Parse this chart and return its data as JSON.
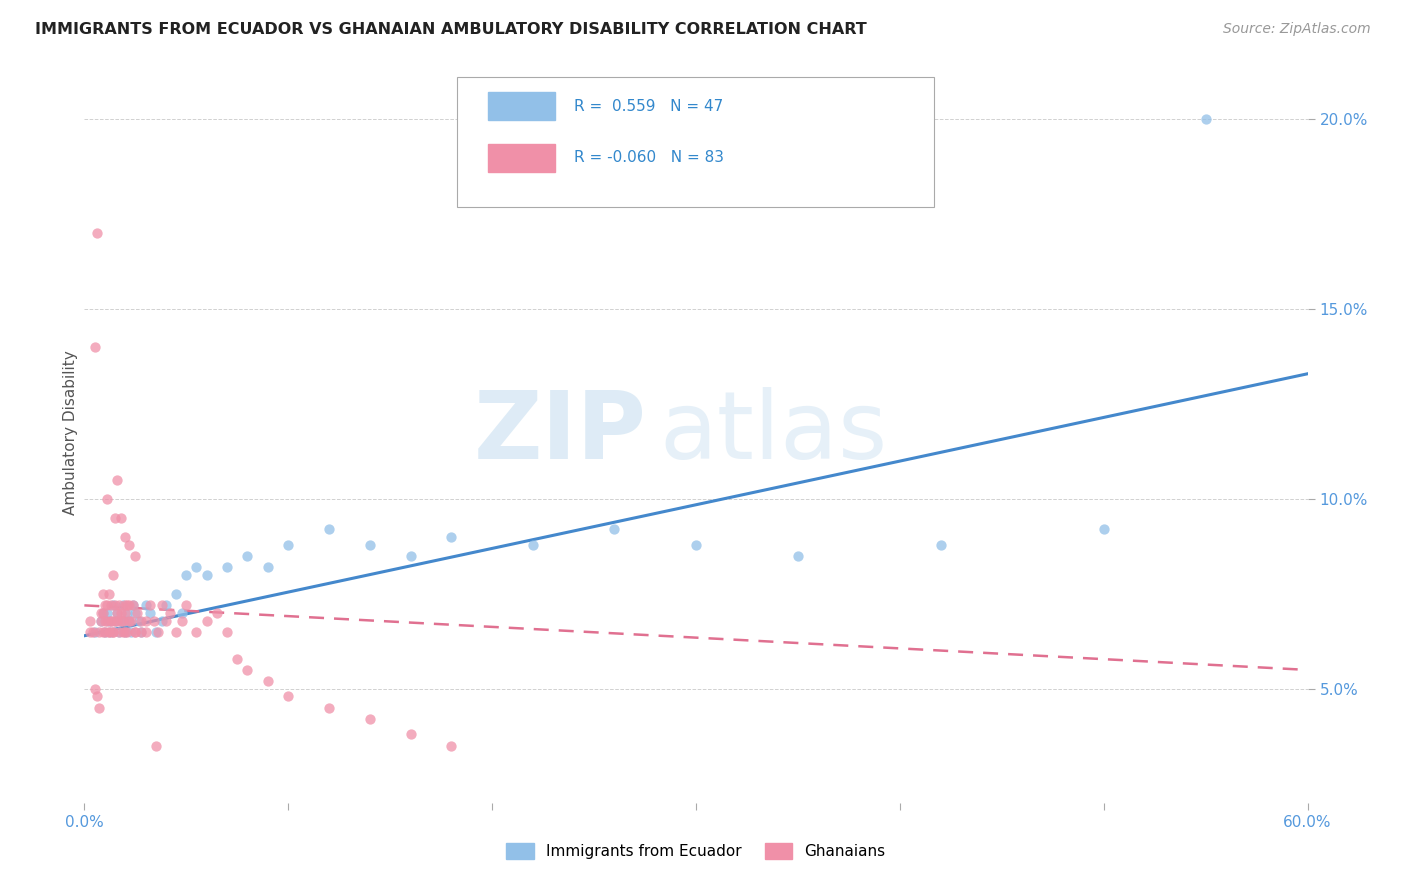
{
  "title": "IMMIGRANTS FROM ECUADOR VS GHANAIAN AMBULATORY DISABILITY CORRELATION CHART",
  "source_text": "Source: ZipAtlas.com",
  "ylabel_label": "Ambulatory Disability",
  "legend_label1": "Immigrants from Ecuador",
  "legend_label2": "Ghanaians",
  "r1": 0.559,
  "n1": 47,
  "r2": -0.06,
  "n2": 83,
  "color1": "#92c0e8",
  "color2": "#f090a8",
  "trendline1_color": "#4488cc",
  "trendline2_color": "#e07090",
  "watermark_zip": "ZIP",
  "watermark_atlas": "atlas",
  "xlim": [
    0.0,
    0.6
  ],
  "ylim": [
    0.02,
    0.215
  ],
  "xticks": [
    0.0,
    0.1,
    0.2,
    0.3,
    0.4,
    0.5,
    0.6
  ],
  "xticklabels": [
    "0.0%",
    "",
    "",
    "",
    "",
    "",
    "60.0%"
  ],
  "yticks": [
    0.05,
    0.1,
    0.15,
    0.2
  ],
  "yticklabels": [
    "5.0%",
    "10.0%",
    "15.0%",
    "20.0%"
  ],
  "scatter1_x": [
    0.005,
    0.008,
    0.009,
    0.01,
    0.011,
    0.012,
    0.013,
    0.014,
    0.015,
    0.016,
    0.017,
    0.018,
    0.019,
    0.02,
    0.02,
    0.021,
    0.022,
    0.023,
    0.024,
    0.025,
    0.027,
    0.028,
    0.03,
    0.032,
    0.035,
    0.038,
    0.04,
    0.045,
    0.048,
    0.05,
    0.055,
    0.06,
    0.07,
    0.08,
    0.09,
    0.1,
    0.12,
    0.14,
    0.16,
    0.18,
    0.22,
    0.26,
    0.3,
    0.35,
    0.42,
    0.5,
    0.55
  ],
  "scatter1_y": [
    0.065,
    0.068,
    0.07,
    0.065,
    0.07,
    0.068,
    0.065,
    0.072,
    0.068,
    0.07,
    0.065,
    0.068,
    0.072,
    0.065,
    0.068,
    0.07,
    0.068,
    0.065,
    0.072,
    0.07,
    0.068,
    0.065,
    0.072,
    0.07,
    0.065,
    0.068,
    0.072,
    0.075,
    0.07,
    0.08,
    0.082,
    0.08,
    0.082,
    0.085,
    0.082,
    0.088,
    0.092,
    0.088,
    0.085,
    0.09,
    0.088,
    0.092,
    0.088,
    0.085,
    0.088,
    0.092,
    0.2
  ],
  "scatter2_x": [
    0.003,
    0.005,
    0.006,
    0.007,
    0.008,
    0.009,
    0.009,
    0.01,
    0.01,
    0.011,
    0.011,
    0.012,
    0.012,
    0.013,
    0.013,
    0.014,
    0.014,
    0.015,
    0.015,
    0.016,
    0.016,
    0.017,
    0.018,
    0.018,
    0.019,
    0.02,
    0.02,
    0.02,
    0.021,
    0.022,
    0.022,
    0.023,
    0.024,
    0.025,
    0.025,
    0.026,
    0.028,
    0.03,
    0.032,
    0.034,
    0.036,
    0.038,
    0.04,
    0.042,
    0.045,
    0.048,
    0.05,
    0.055,
    0.06,
    0.065,
    0.07,
    0.075,
    0.08,
    0.09,
    0.1,
    0.12,
    0.14,
    0.16,
    0.18,
    0.003,
    0.004,
    0.005,
    0.006,
    0.007,
    0.008,
    0.009,
    0.01,
    0.011,
    0.012,
    0.013,
    0.014,
    0.015,
    0.016,
    0.017,
    0.018,
    0.019,
    0.02,
    0.021,
    0.022,
    0.025,
    0.028,
    0.03,
    0.035
  ],
  "scatter2_y": [
    0.065,
    0.14,
    0.17,
    0.065,
    0.068,
    0.07,
    0.075,
    0.065,
    0.072,
    0.068,
    0.1,
    0.065,
    0.075,
    0.068,
    0.072,
    0.065,
    0.08,
    0.068,
    0.095,
    0.07,
    0.105,
    0.072,
    0.068,
    0.095,
    0.065,
    0.072,
    0.07,
    0.09,
    0.065,
    0.072,
    0.088,
    0.068,
    0.072,
    0.065,
    0.085,
    0.07,
    0.065,
    0.068,
    0.072,
    0.068,
    0.065,
    0.072,
    0.068,
    0.07,
    0.065,
    0.068,
    0.072,
    0.065,
    0.068,
    0.07,
    0.065,
    0.058,
    0.055,
    0.052,
    0.048,
    0.045,
    0.042,
    0.038,
    0.035,
    0.068,
    0.065,
    0.05,
    0.048,
    0.045,
    0.07,
    0.065,
    0.068,
    0.072,
    0.065,
    0.068,
    0.065,
    0.072,
    0.068,
    0.065,
    0.07,
    0.068,
    0.065,
    0.072,
    0.068,
    0.065,
    0.068,
    0.065,
    0.035
  ]
}
